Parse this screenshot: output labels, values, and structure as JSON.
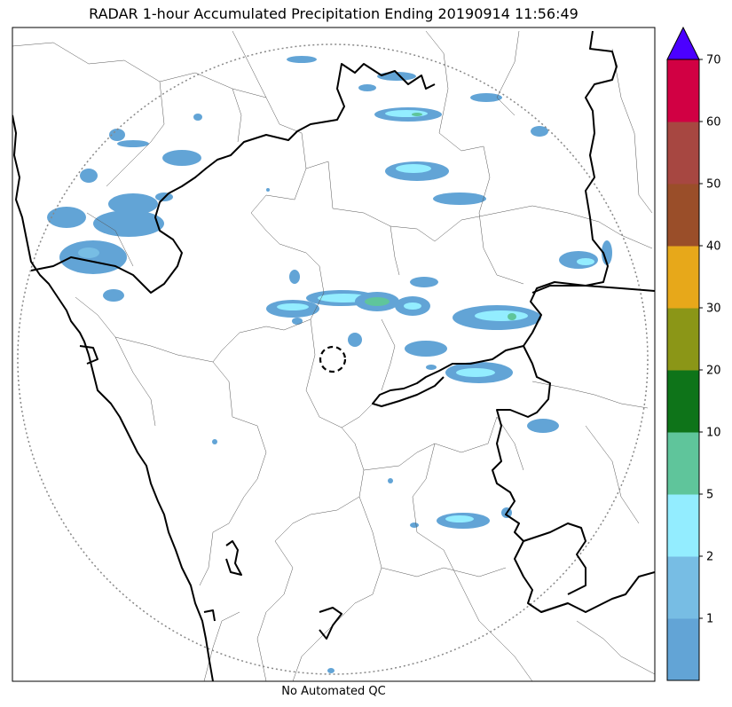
{
  "title": "RADAR 1-hour Accumulated Precipitation Ending 20190914 11:56:49",
  "footer": "No Automated QC",
  "colorbar": {
    "extend": "max",
    "extend_color": "#4b00ff",
    "bins": [
      {
        "min": 0,
        "max": 1,
        "color": "#62a4d6"
      },
      {
        "min": 1,
        "max": 2,
        "color": "#77bde4"
      },
      {
        "min": 2,
        "max": 5,
        "color": "#93edff"
      },
      {
        "min": 5,
        "max": 10,
        "color": "#5fc59b"
      },
      {
        "min": 10,
        "max": 20,
        "color": "#0e7419"
      },
      {
        "min": 20,
        "max": 30,
        "color": "#8b9617"
      },
      {
        "min": 30,
        "max": 40,
        "color": "#e7a81a"
      },
      {
        "min": 40,
        "max": 50,
        "color": "#9a4e29"
      },
      {
        "min": 50,
        "max": 60,
        "color": "#a74741"
      },
      {
        "min": 60,
        "max": 70,
        "color": "#d10043"
      }
    ],
    "tick_labels": [
      "1",
      "2",
      "5",
      "10",
      "20",
      "30",
      "40",
      "50",
      "60",
      "70"
    ]
  }
}
